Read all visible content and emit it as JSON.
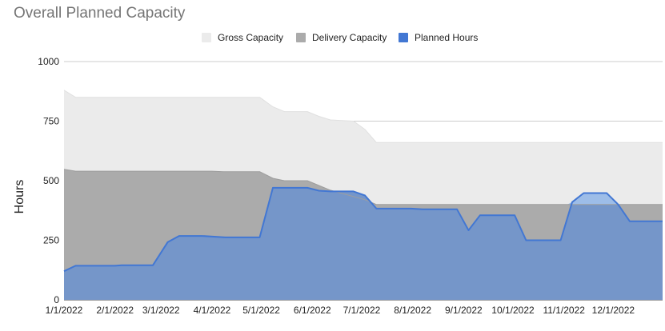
{
  "chart_data": {
    "type": "area",
    "title": "Overall Planned Capacity",
    "xlabel": "",
    "ylabel": "Hours",
    "ylim": [
      0,
      1000
    ],
    "yticks": [
      "0",
      "250",
      "500",
      "750",
      "1000"
    ],
    "xticks": [
      "1/1/2022",
      "2/1/2022",
      "3/1/2022",
      "4/1/2022",
      "5/1/2022",
      "6/1/2022",
      "7/1/2022",
      "8/1/2022",
      "9/1/2022",
      "10/1/2022",
      "11/1/2022",
      "12/1/2022"
    ],
    "x_start": "2022-01-01",
    "x_end": "2022-12-31",
    "grid": true,
    "legend_position": "top",
    "series": [
      {
        "name": "Gross Capacity",
        "color": "#ebebeb",
        "stroke": "#e0e0e0",
        "points": [
          [
            "2022-01-01",
            880
          ],
          [
            "2022-01-08",
            850
          ],
          [
            "2022-04-19",
            850
          ],
          [
            "2022-04-30",
            850
          ],
          [
            "2022-05-08",
            810
          ],
          [
            "2022-05-15",
            790
          ],
          [
            "2022-05-29",
            790
          ],
          [
            "2022-06-05",
            770
          ],
          [
            "2022-06-12",
            755
          ],
          [
            "2022-06-26",
            750
          ],
          [
            "2022-07-03",
            715
          ],
          [
            "2022-07-10",
            660
          ],
          [
            "2022-12-31",
            660
          ]
        ]
      },
      {
        "name": "Delivery Capacity",
        "color": "#ababab",
        "stroke": "#9e9e9e",
        "points": [
          [
            "2022-01-01",
            548
          ],
          [
            "2022-01-08",
            540
          ],
          [
            "2022-04-01",
            540
          ],
          [
            "2022-04-08",
            538
          ],
          [
            "2022-04-30",
            538
          ],
          [
            "2022-05-08",
            510
          ],
          [
            "2022-05-15",
            500
          ],
          [
            "2022-05-29",
            500
          ],
          [
            "2022-06-12",
            460
          ],
          [
            "2022-07-03",
            420
          ],
          [
            "2022-07-10",
            400
          ],
          [
            "2022-12-31",
            400
          ]
        ]
      },
      {
        "name": "Planned Hours",
        "color": "#7596c9",
        "stroke": "#4277d3",
        "points": [
          [
            "2022-01-01",
            120
          ],
          [
            "2022-01-08",
            143
          ],
          [
            "2022-02-01",
            143
          ],
          [
            "2022-02-05",
            145
          ],
          [
            "2022-02-24",
            145
          ],
          [
            "2022-03-05",
            242
          ],
          [
            "2022-03-12",
            268
          ],
          [
            "2022-03-26",
            268
          ],
          [
            "2022-04-09",
            262
          ],
          [
            "2022-04-30",
            262
          ],
          [
            "2022-05-08",
            470
          ],
          [
            "2022-05-29",
            470
          ],
          [
            "2022-06-05",
            458
          ],
          [
            "2022-06-12",
            455
          ],
          [
            "2022-06-26",
            455
          ],
          [
            "2022-07-03",
            438
          ],
          [
            "2022-07-10",
            383
          ],
          [
            "2022-07-31",
            383
          ],
          [
            "2022-08-07",
            380
          ],
          [
            "2022-08-28",
            380
          ],
          [
            "2022-09-04",
            292
          ],
          [
            "2022-09-11",
            355
          ],
          [
            "2022-10-02",
            355
          ],
          [
            "2022-10-09",
            250
          ],
          [
            "2022-10-30",
            250
          ],
          [
            "2022-11-06",
            410
          ],
          [
            "2022-11-13",
            448
          ],
          [
            "2022-11-27",
            448
          ],
          [
            "2022-12-04",
            400
          ],
          [
            "2022-12-11",
            330
          ],
          [
            "2022-12-31",
            330
          ]
        ]
      }
    ]
  },
  "legend": {
    "items": [
      {
        "label": "Gross Capacity",
        "color": "#ebebeb"
      },
      {
        "label": "Delivery Capacity",
        "color": "#ababab"
      },
      {
        "label": "Planned Hours",
        "color": "#4277d3"
      }
    ]
  },
  "colors": {
    "grid": "#cccccc",
    "baseline": "#333333",
    "overcapacity_fill": "#9dbde8"
  }
}
